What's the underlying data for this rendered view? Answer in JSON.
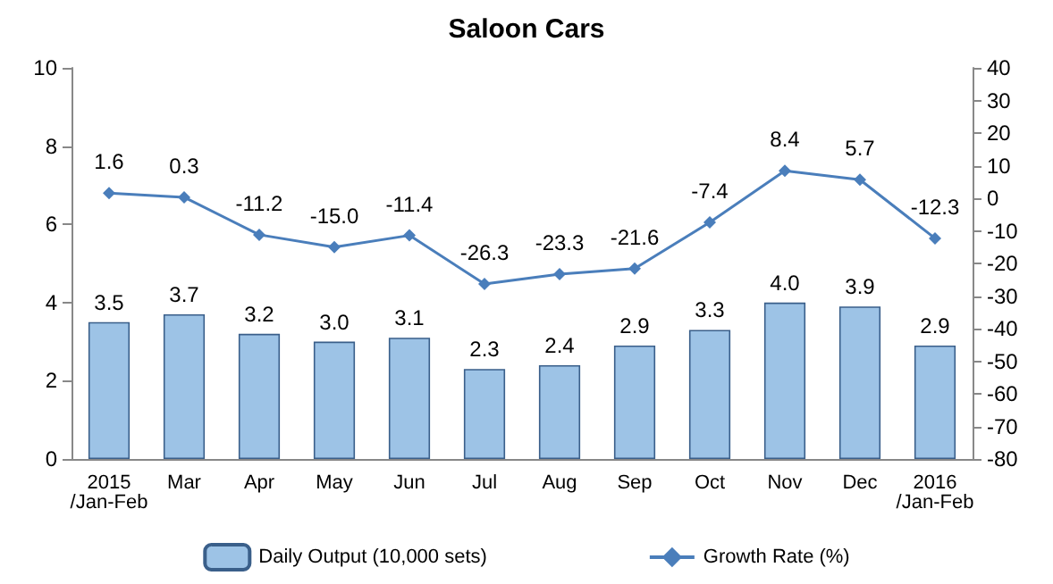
{
  "chart_data": {
    "type": "bar",
    "title": "Saloon Cars",
    "categories": [
      "2015\n/Jan-Feb",
      "Mar",
      "Apr",
      "May",
      "Jun",
      "Jul",
      "Aug",
      "Sep",
      "Oct",
      "Nov",
      "Dec",
      "2016\n/Jan-Feb"
    ],
    "series": [
      {
        "name": "Daily Output (10,000 sets)",
        "color": "#9dc3e6",
        "values": [
          3.5,
          3.7,
          3.2,
          3.0,
          3.1,
          2.3,
          2.4,
          2.9,
          3.3,
          4.0,
          3.9,
          2.9
        ],
        "value_labels": [
          "3.5",
          "3.7",
          "3.2",
          "3.0",
          "3.1",
          "2.3",
          "2.4",
          "2.9",
          "3.3",
          "4.0",
          "3.9",
          "2.9"
        ]
      },
      {
        "name": "Growth Rate (%)",
        "type": "line",
        "axis": "y2",
        "color": "#4a7ebb",
        "marker": "diamond",
        "values": [
          1.6,
          0.3,
          -11.2,
          -15.0,
          -11.4,
          -26.3,
          -23.3,
          -21.6,
          -7.4,
          8.4,
          5.7,
          -12.3
        ],
        "value_labels": [
          "1.6",
          "0.3",
          "-11.2",
          "-15.0",
          "-11.4",
          "-26.3",
          "-23.3",
          "-21.6",
          "-7.4",
          "8.4",
          "5.7",
          "-12.3"
        ]
      }
    ],
    "ylim": [
      0,
      10
    ],
    "yticks": [
      0,
      2,
      4,
      6,
      8,
      10
    ],
    "y2lim": [
      -80,
      40
    ],
    "y2ticks": [
      -80,
      -70,
      -60,
      -50,
      -40,
      -30,
      -20,
      -10,
      0,
      10,
      20,
      30,
      40
    ],
    "legend": "bottom",
    "grid": false
  }
}
